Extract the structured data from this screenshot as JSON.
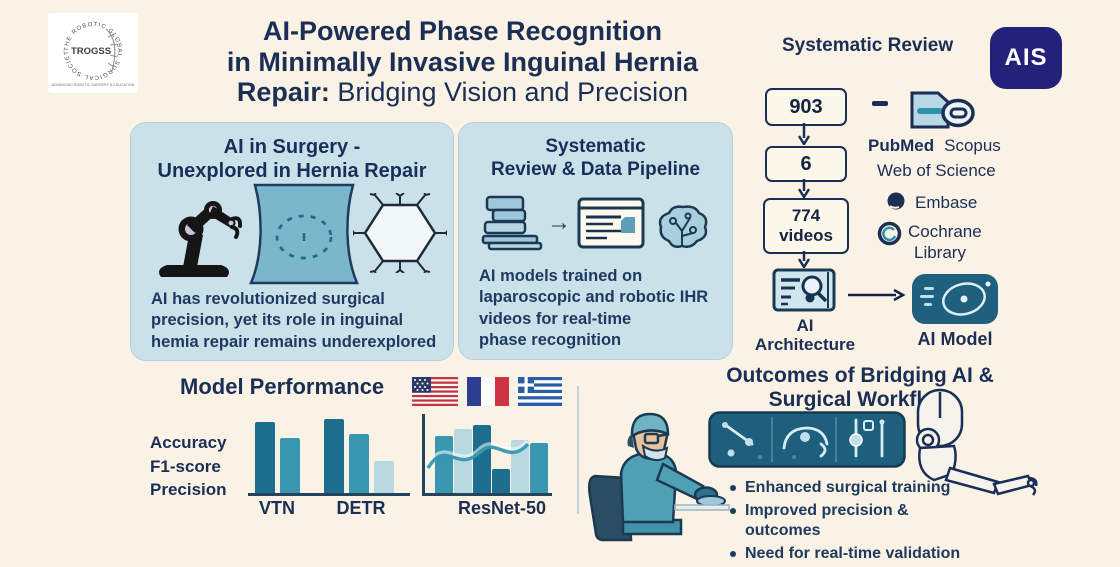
{
  "colors": {
    "background": "#faf3e5",
    "navy": "#1b2e55",
    "panel_blue": "#cbe1ea",
    "badge_indigo": "#232178",
    "teal_dark": "#1d6e8e",
    "teal_medium": "#2e92ac",
    "teal_light": "#a9d2e0",
    "console_teal": "#1d5f7d"
  },
  "logo": {
    "acronym": "TROGSS",
    "ring_text": "THE ROBOTIC GLOBAL SURGICAL SOCIETY",
    "tagline": "ADVANCING ROBOTIC SURGERY & EDUCATION"
  },
  "title": {
    "line1": "AI-Powered Phase Recognition",
    "line2": "in Minimally Invasive Inguinal Hernia",
    "line3_bold": "Repair:",
    "line3_rest": "Bridging Vision and Precision"
  },
  "review": {
    "heading": "Systematic Review",
    "badge": "AIS",
    "flow_boxes": [
      "903",
      "6",
      "774 videos"
    ],
    "databases": {
      "pubmed": "PubMed",
      "scopus": "Scopus",
      "web_of_science": "Web of Science",
      "embase": "Embase",
      "cochrane_line1": "Cochrane",
      "cochrane_line2": "Library"
    },
    "arch_label_line1": "AI",
    "arch_label_line2": "Architecture",
    "model_label": "AI Model"
  },
  "panel_surgery": {
    "title_line1": "AI in Surgery -",
    "title_line2": "Unexplored in Hernia Repair",
    "body_line1": "AI has revolutionized surgical",
    "body_line2": "precision, yet its role in inguinal",
    "body_line3": "hemia repair remains underexplored"
  },
  "panel_pipeline": {
    "title_line1": "Systematic",
    "title_line2": "Review & Data Pipeline",
    "body_line1": "AI models trained on",
    "body_line2": "laparoscopic and robotic IHR",
    "body_line3": "videos for real-time",
    "body_line4": "phase recognition"
  },
  "performance": {
    "title": "Model Performance",
    "metrics": [
      "Accuracy",
      "F1-score",
      "Precision"
    ],
    "flags": [
      "USA",
      "France",
      "Greece"
    ]
  },
  "icons": {
    "arrow_right": "→"
  },
  "chart_data": {
    "type": "bar",
    "title": "Model Performance",
    "metrics_legend": [
      "Accuracy",
      "F1-score",
      "Precision"
    ],
    "ylim": [
      0,
      100
    ],
    "grid": false,
    "groups": [
      {
        "label": "VTN",
        "bars": [
          {
            "value": 96,
            "shade": "dark"
          },
          {
            "value": 74,
            "shade": "medium"
          }
        ]
      },
      {
        "label": "DETR",
        "bars": [
          {
            "value": 100,
            "shade": "dark"
          },
          {
            "value": 80,
            "shade": "medium"
          },
          {
            "value": 43,
            "shade": "light"
          }
        ]
      },
      {
        "label": "ResNet-50",
        "bars": [
          {
            "value": 77,
            "shade": "medium"
          },
          {
            "value": 87,
            "shade": "light"
          },
          {
            "value": 92,
            "shade": "dark"
          },
          {
            "value": 33,
            "shade": "dark"
          },
          {
            "value": 71,
            "shade": "light"
          },
          {
            "value": 67,
            "shade": "medium"
          }
        ]
      }
    ]
  },
  "outcomes": {
    "title_line1": "Outcomes of Bridging AI &",
    "title_line2": "Surgical Workflow",
    "bullets": [
      "Enhanced surgical training",
      "Improved precision & outcomes",
      "Need for real-time validation"
    ]
  }
}
